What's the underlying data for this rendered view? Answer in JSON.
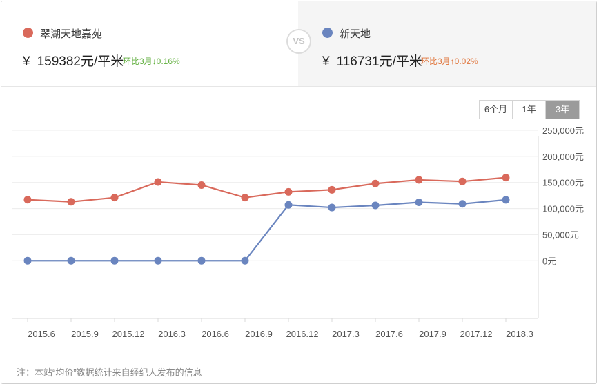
{
  "header": {
    "left": {
      "name": "翠湖天地嘉苑",
      "currency": "¥",
      "price": "159382元/平米",
      "change": "环比3月↓0.16%",
      "dot_color": "#d9695b",
      "change_color": "#5fae3c"
    },
    "vs_label": "VS",
    "right": {
      "name": "新天地",
      "currency": "¥",
      "price": "116731元/平米",
      "change": "环比3月↑0.02%",
      "dot_color": "#6a85bf",
      "change_color": "#e0743a"
    }
  },
  "range_buttons": [
    {
      "label": "6个月",
      "active": false
    },
    {
      "label": "1年",
      "active": false
    },
    {
      "label": "3年",
      "active": true
    }
  ],
  "chart_data": {
    "type": "line",
    "title": "",
    "xlabel": "",
    "ylabel": "",
    "categories": [
      "2015.6",
      "2015.9",
      "2015.12",
      "2016.3",
      "2016.6",
      "2016.9",
      "2016.12",
      "2017.3",
      "2017.6",
      "2017.9",
      "2017.12",
      "2018.3"
    ],
    "ylim": [
      -100000,
      250000
    ],
    "yticks": [
      0,
      50000,
      100000,
      150000,
      200000,
      250000
    ],
    "ytick_labels": [
      "0元",
      "50,000元",
      "100,000元",
      "150,000元",
      "200,000元",
      "250,000元"
    ],
    "grid": true,
    "series": [
      {
        "name": "翠湖天地嘉苑",
        "color": "#d9695b",
        "values": [
          117000,
          113000,
          121000,
          151000,
          145000,
          121000,
          132000,
          136000,
          148000,
          155000,
          152000,
          159382
        ]
      },
      {
        "name": "新天地",
        "color": "#6a85bf",
        "values": [
          0,
          0,
          0,
          0,
          0,
          0,
          107000,
          102000,
          106000,
          112000,
          109000,
          116731
        ]
      }
    ]
  },
  "footnote": "注：本站“均价”数据统计来自经纪人发布的信息"
}
